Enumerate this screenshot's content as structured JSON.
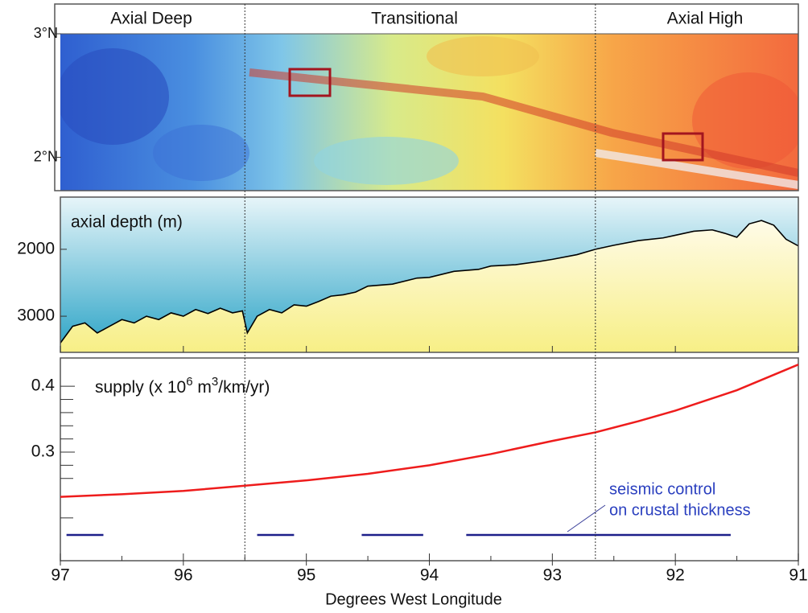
{
  "chart_data": [
    {
      "type": "map",
      "regions": [
        "Axial Deep",
        "Transitional",
        "Axial High"
      ],
      "dividers": [
        95.5,
        92.65
      ],
      "ylim": [
        1.73,
        3.0
      ],
      "yticks": [
        {
          "value": 3,
          "label": "3°N"
        },
        {
          "value": 2,
          "label": "2°N"
        }
      ]
    },
    {
      "type": "line",
      "title": "axial depth (m)",
      "x": [
        97.0,
        96.9,
        96.8,
        96.7,
        96.6,
        96.5,
        96.4,
        96.3,
        96.2,
        96.1,
        96.0,
        95.9,
        95.8,
        95.7,
        95.6,
        95.52,
        95.48,
        95.4,
        95.3,
        95.2,
        95.1,
        95.0,
        94.9,
        94.8,
        94.7,
        94.6,
        94.5,
        94.3,
        94.1,
        94.0,
        93.8,
        93.6,
        93.5,
        93.3,
        93.1,
        93.0,
        92.8,
        92.65,
        92.5,
        92.3,
        92.1,
        92.0,
        91.85,
        91.7,
        91.6,
        91.5,
        91.4,
        91.3,
        91.2,
        91.1,
        91.0
      ],
      "values": [
        3400,
        3150,
        3100,
        3250,
        3150,
        3050,
        3100,
        3000,
        3050,
        2950,
        3000,
        2900,
        2960,
        2880,
        2950,
        2920,
        3250,
        3000,
        2900,
        2950,
        2830,
        2850,
        2780,
        2700,
        2680,
        2640,
        2550,
        2520,
        2430,
        2420,
        2330,
        2300,
        2250,
        2230,
        2180,
        2150,
        2080,
        2000,
        1940,
        1870,
        1830,
        1790,
        1730,
        1710,
        1760,
        1820,
        1620,
        1570,
        1640,
        1850,
        1950
      ],
      "color": "#000000",
      "ylim": [
        3540,
        1220
      ],
      "yticks": [
        2000,
        3000
      ]
    },
    {
      "type": "line",
      "title_parts": [
        "supply (x 10",
        "6",
        " m",
        "3",
        "/km/yr)"
      ],
      "x": [
        97.0,
        96.5,
        96.0,
        95.5,
        95.0,
        94.5,
        94.0,
        93.5,
        93.0,
        92.65,
        92.3,
        92.0,
        91.5,
        91.0
      ],
      "values": [
        0.232,
        0.236,
        0.241,
        0.249,
        0.257,
        0.267,
        0.28,
        0.297,
        0.317,
        0.33,
        0.347,
        0.363,
        0.394,
        0.433
      ],
      "color": "#ee1c1c",
      "segments": [
        [
          96.95,
          96.65
        ],
        [
          95.4,
          95.1
        ],
        [
          94.55,
          94.05
        ],
        [
          93.7,
          91.55
        ]
      ],
      "segment_color": "#1c1f8a",
      "annotation": [
        "seismic control",
        "on crustal thickness"
      ],
      "ylim": [
        0.135,
        0.443
      ],
      "yticks": [
        0.3,
        0.4
      ],
      "yminorticks": [
        0.2,
        0.26,
        0.28,
        0.32,
        0.34,
        0.36,
        0.38
      ],
      "xlim": [
        97,
        91
      ],
      "xticks": [
        97,
        96,
        95,
        94,
        93,
        92,
        91
      ],
      "xlabel": "Degrees West Longitude"
    }
  ]
}
